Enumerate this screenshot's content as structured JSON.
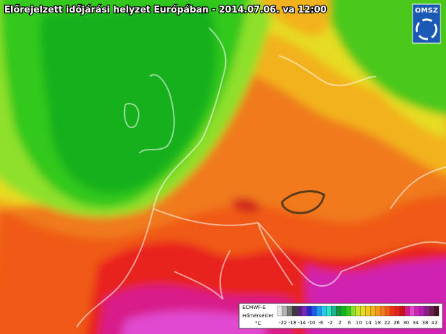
{
  "header": {
    "title": "Előrejelzett időjárási helyzet Európában - 2014.07.06. va 12:00",
    "logo": "OMSZ"
  },
  "legend": {
    "model": "ECMWF-E",
    "label": "Hőmérséklet",
    "unit": "°C",
    "ticks": [
      "-22",
      "-18",
      "-14",
      "-10",
      "-6",
      "-2",
      "2",
      "6",
      "10",
      "14",
      "18",
      "22",
      "26",
      "30",
      "34",
      "38",
      "42"
    ]
  }
}
